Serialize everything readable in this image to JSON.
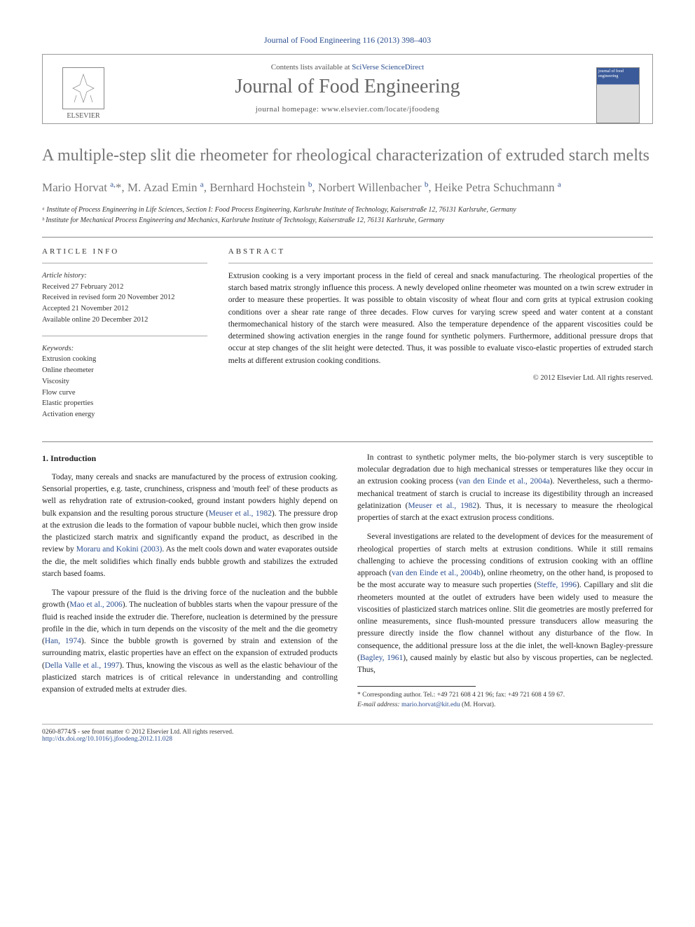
{
  "journal_ref": "Journal of Food Engineering 116 (2013) 398–403",
  "header": {
    "contents_line_prefix": "Contents lists available at ",
    "contents_link": "SciVerse ScienceDirect",
    "journal_name": "Journal of Food Engineering",
    "homepage_prefix": "journal homepage: ",
    "homepage_url": "www.elsevier.com/locate/jfoodeng",
    "publisher": "ELSEVIER",
    "cover_label": "journal of food engineering"
  },
  "article": {
    "title": "A multiple-step slit die rheometer for rheological characterization of extruded starch melts",
    "authors_html": "Mario Horvat <sup>a,</sup><span class='star'>*</span>, M. Azad Emin <sup>a</sup>, Bernhard Hochstein <sup>b</sup>, Norbert Willenbacher <sup>b</sup>, Heike Petra Schuchmann <sup>a</sup>",
    "affiliations": [
      "ᵃ Institute of Process Engineering in Life Sciences, Section I: Food Process Engineering, Karlsruhe Institute of Technology, Kaiserstraße 12, 76131 Karlsruhe, Germany",
      "ᵇ Institute for Mechanical Process Engineering and Mechanics, Karlsruhe Institute of Technology, Kaiserstraße 12, 76131 Karlsruhe, Germany"
    ]
  },
  "info": {
    "heading": "ARTICLE INFO",
    "history_label": "Article history:",
    "history": [
      "Received 27 February 2012",
      "Received in revised form 20 November 2012",
      "Accepted 21 November 2012",
      "Available online 20 December 2012"
    ],
    "keywords_label": "Keywords:",
    "keywords": [
      "Extrusion cooking",
      "Online rheometer",
      "Viscosity",
      "Flow curve",
      "Elastic properties",
      "Activation energy"
    ]
  },
  "abstract": {
    "heading": "ABSTRACT",
    "text": "Extrusion cooking is a very important process in the field of cereal and snack manufacturing. The rheological properties of the starch based matrix strongly influence this process. A newly developed online rheometer was mounted on a twin screw extruder in order to measure these properties. It was possible to obtain viscosity of wheat flour and corn grits at typical extrusion cooking conditions over a shear rate range of three decades. Flow curves for varying screw speed and water content at a constant thermomechanical history of the starch were measured. Also the temperature dependence of the apparent viscosities could be determined showing activation energies in the range found for synthetic polymers. Furthermore, additional pressure drops that occur at step changes of the slit height were detected. Thus, it was possible to evaluate visco-elastic properties of extruded starch melts at different extrusion cooking conditions.",
    "copyright": "© 2012 Elsevier Ltd. All rights reserved."
  },
  "body": {
    "section_number": "1.",
    "section_title": "Introduction",
    "paragraphs": [
      "Today, many cereals and snacks are manufactured by the process of extrusion cooking. Sensorial properties, e.g. taste, crunchiness, crispness and 'mouth feel' of these products as well as rehydration rate of extrusion-cooked, ground instant powders highly depend on bulk expansion and the resulting porous structure (<span class='cite'>Meuser et al., 1982</span>). The pressure drop at the extrusion die leads to the formation of vapour bubble nuclei, which then grow inside the plasticized starch matrix and significantly expand the product, as described in the review by <span class='cite'>Moraru and Kokini (2003)</span>. As the melt cools down and water evaporates outside the die, the melt solidifies which finally ends bubble growth and stabilizes the extruded starch based foams.",
      "The vapour pressure of the fluid is the driving force of the nucleation and the bubble growth (<span class='cite'>Mao et al., 2006</span>). The nucleation of bubbles starts when the vapour pressure of the fluid is reached inside the extruder die. Therefore, nucleation is determined by the pressure profile in the die, which in turn depends on the viscosity of the melt and the die geometry (<span class='cite'>Han, 1974</span>). Since the bubble growth is governed by strain and extension of the surrounding matrix, elastic properties have an effect on the expansion of extruded products (<span class='cite'>Della Valle et al., 1997</span>). Thus, knowing the viscous as well as the elastic behaviour of the plasticized starch matrices is of critical relevance in understanding and controlling expansion of extruded melts at extruder dies.",
      "In contrast to synthetic polymer melts, the bio-polymer starch is very susceptible to molecular degradation due to high mechanical stresses or temperatures like they occur in an extrusion cooking process (<span class='cite'>van den Einde et al., 2004a</span>). Nevertheless, such a thermo-mechanical treatment of starch is crucial to increase its digestibility through an increased gelatinization (<span class='cite'>Meuser et al., 1982</span>). Thus, it is necessary to measure the rheological properties of starch at the exact extrusion process conditions.",
      "Several investigations are related to the development of devices for the measurement of rheological properties of starch melts at extrusion conditions. While it still remains challenging to achieve the processing conditions of extrusion cooking with an offline approach (<span class='cite'>van den Einde et al., 2004b</span>), online rheometry, on the other hand, is proposed to be the most accurate way to measure such properties (<span class='cite'>Steffe, 1996</span>). Capillary and slit die rheometers mounted at the outlet of extruders have been widely used to measure the viscosities of plasticized starch matrices online. Slit die geometries are mostly preferred for online measurements, since flush-mounted pressure transducers allow measuring the pressure directly inside the flow channel without any disturbance of the flow. In consequence, the additional pressure loss at the die inlet, the well-known Bagley-pressure (<span class='cite'>Bagley, 1961</span>), caused mainly by elastic but also by viscous properties, can be neglected. Thus,"
    ]
  },
  "footnote": {
    "corresponding": "* Corresponding author. Tel.: +49 721 608 4 21 96; fax: +49 721 608 4 59 67.",
    "email_label": "E-mail address:",
    "email": "mario.horvat@kit.edu",
    "email_suffix": "(M. Horvat)."
  },
  "footer": {
    "left_line1": "0260-8774/$ - see front matter © 2012 Elsevier Ltd. All rights reserved.",
    "left_line2": "http://dx.doi.org/10.1016/j.jfoodeng.2012.11.028"
  },
  "colors": {
    "link": "#2a4d8f",
    "heading_gray": "#777",
    "text": "#222",
    "rule": "#888"
  }
}
